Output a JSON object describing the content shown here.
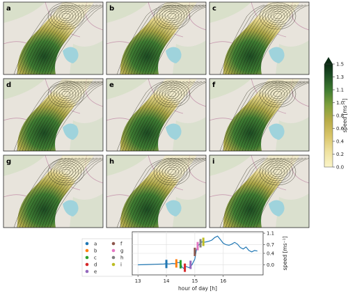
{
  "panels": [
    {
      "letter": "a"
    },
    {
      "letter": "b"
    },
    {
      "letter": "c"
    },
    {
      "letter": "d"
    },
    {
      "letter": "e"
    },
    {
      "letter": "f"
    },
    {
      "letter": "g"
    },
    {
      "letter": "h"
    },
    {
      "letter": "i"
    }
  ],
  "colorbar": {
    "label": "speed [ms⁻¹]",
    "ticks": [
      "0.0",
      "0.2",
      "0.4",
      "0.6",
      "0.8",
      "1.0",
      "1.1",
      "1.3",
      "1.5"
    ],
    "colors": [
      "#fbf5c8",
      "#efe2a0",
      "#d9c56a",
      "#b8ac48",
      "#8fa03c",
      "#5e8c36",
      "#2e6b2c",
      "#1b4a22",
      "#0b2a14"
    ],
    "extend": "max"
  },
  "chart_data": {
    "type": "line",
    "xlabel": "hour of day [h]",
    "ylabel": "speed [ms⁻¹]",
    "xlim": [
      12.8,
      17.4
    ],
    "ylim": [
      -0.35,
      1.15
    ],
    "xticks": [
      "13",
      "14",
      "15",
      "16"
    ],
    "yticks": [
      "0.0",
      "0.4",
      "0.7",
      "1.1"
    ],
    "grid": true,
    "legend_position": "left",
    "series": [
      {
        "x": [
          13.0,
          13.3,
          13.6,
          13.9,
          14.0,
          14.1,
          14.2,
          14.3,
          14.4,
          14.5,
          14.55,
          14.6,
          14.7,
          14.8,
          14.9,
          15.0,
          15.05,
          15.1,
          15.15,
          15.2,
          15.25,
          15.3,
          15.4,
          15.5,
          15.6,
          15.7,
          15.8,
          15.9,
          16.0,
          16.1,
          16.2,
          16.3,
          16.4,
          16.5,
          16.6,
          16.7,
          16.8,
          16.9,
          17.0,
          17.1,
          17.2
        ],
        "y": [
          0.0,
          0.01,
          0.02,
          0.03,
          0.04,
          0.03,
          0.05,
          0.04,
          0.08,
          0.07,
          -0.08,
          -0.12,
          -0.06,
          -0.1,
          0.0,
          0.2,
          0.5,
          0.65,
          0.7,
          0.75,
          0.8,
          0.78,
          0.8,
          0.82,
          0.86,
          0.95,
          1.0,
          0.88,
          0.75,
          0.7,
          0.68,
          0.72,
          0.78,
          0.72,
          0.6,
          0.55,
          0.62,
          0.5,
          0.45,
          0.5,
          0.48
        ],
        "color": "#1f77b4"
      }
    ],
    "markers": [
      {
        "label": "a",
        "x": 14.0,
        "y": 0.03,
        "color": "#1f77b4"
      },
      {
        "label": "b",
        "x": 14.35,
        "y": 0.05,
        "color": "#ff7f0e"
      },
      {
        "label": "c",
        "x": 14.5,
        "y": 0.02,
        "color": "#2ca02c"
      },
      {
        "label": "d",
        "x": 14.65,
        "y": -0.1,
        "color": "#d62728"
      },
      {
        "label": "e",
        "x": 14.85,
        "y": 0.0,
        "color": "#9467bd"
      },
      {
        "label": "f",
        "x": 15.0,
        "y": 0.45,
        "color": "#8c564b"
      },
      {
        "label": "g",
        "x": 15.1,
        "y": 0.65,
        "color": "#e377c2"
      },
      {
        "label": "h",
        "x": 15.2,
        "y": 0.75,
        "color": "#7f7f7f"
      },
      {
        "label": "i",
        "x": 15.3,
        "y": 0.8,
        "color": "#bcbd22"
      }
    ]
  }
}
